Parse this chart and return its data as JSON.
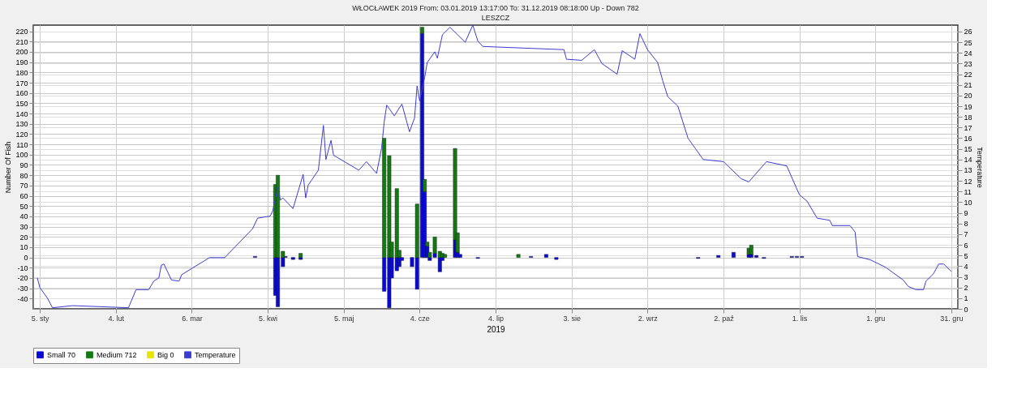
{
  "chart_data": {
    "type": "bar",
    "title": "WŁOCŁAWEK 2019    From: 03.01.2019 13:17:00    To: 31.12.2019 08:18:00    Up - Down   782",
    "subtitle": "LESZCZ",
    "xlabel": "2019",
    "ylabel": "Number Of Fish",
    "y2label": "Temperature",
    "stacked": true,
    "legend": "bottom",
    "grid": true,
    "x": [
      "2019-03-31",
      "2019-04-08",
      "2019-04-09",
      "2019-04-11",
      "2019-04-12",
      "2019-04-15",
      "2019-04-18",
      "2019-05-21",
      "2019-05-23",
      "2019-05-24",
      "2019-05-26",
      "2019-05-27",
      "2019-05-28",
      "2019-06-01",
      "2019-06-03",
      "2019-06-05",
      "2019-06-06",
      "2019-06-07",
      "2019-06-08",
      "2019-06-10",
      "2019-06-12",
      "2019-06-13",
      "2019-06-14",
      "2019-06-18",
      "2019-06-19",
      "2019-06-20",
      "2019-06-27",
      "2019-07-13",
      "2019-07-18",
      "2019-07-24",
      "2019-07-28",
      "2019-09-22",
      "2019-09-30",
      "2019-10-06",
      "2019-10-12",
      "2019-10-13",
      "2019-10-15",
      "2019-10-18",
      "2019-10-29",
      "2019-10-31",
      "2019-11-02"
    ],
    "series": [
      {
        "name": "Small 70",
        "color": "#0a0ad8",
        "values": [
          1,
          -37,
          -48,
          -9,
          1,
          -2,
          -2,
          -33,
          -49,
          -20,
          -13,
          -9,
          -3,
          -9,
          -31,
          218,
          64,
          11,
          -3,
          4,
          -14,
          -3,
          null,
          17,
          5,
          3,
          -1,
          null,
          1,
          3,
          -2,
          -1,
          2,
          5,
          3,
          3,
          2,
          -1,
          1,
          1,
          1
        ]
      },
      {
        "name": "Medium 712",
        "color": "#137a13",
        "values": [
          null,
          71,
          80,
          6,
          null,
          null,
          4,
          116,
          99,
          15,
          67,
          7,
          null,
          null,
          52,
          6,
          12,
          4,
          5,
          16,
          6,
          4,
          3,
          89,
          19,
          null,
          null,
          3,
          null,
          null,
          null,
          null,
          null,
          null,
          6,
          9,
          null,
          null,
          null,
          null,
          null
        ]
      },
      {
        "name": "Big 0",
        "color": "#e6e600",
        "values": [
          null,
          null,
          null,
          null,
          null,
          null,
          null,
          null,
          null,
          null,
          null,
          null,
          null,
          null,
          null,
          null,
          null,
          null,
          null,
          null,
          null,
          null,
          null,
          null,
          null,
          null,
          null,
          null,
          null,
          null,
          null,
          null,
          null,
          null,
          null,
          null,
          null,
          null,
          null,
          null,
          null
        ]
      },
      {
        "name": "Temperature",
        "type": "line",
        "axis": "y2",
        "color": "#3c3cd2",
        "x": [
          "2019-01-04",
          "2019-01-05",
          "2019-01-08",
          "2019-01-10",
          "2019-01-18",
          "2019-02-09",
          "2019-02-12",
          "2019-02-17",
          "2019-02-19",
          "2019-02-21",
          "2019-02-22",
          "2019-02-23",
          "2019-02-26",
          "2019-03-01",
          "2019-03-02",
          "2019-03-13",
          "2019-03-19",
          "2019-03-30",
          "2019-04-01",
          "2019-04-06",
          "2019-04-07",
          "2019-04-09",
          "2019-04-10",
          "2019-04-11",
          "2019-04-15",
          "2019-04-19",
          "2019-04-20",
          "2019-04-21",
          "2019-04-25",
          "2019-04-27",
          "2019-04-28",
          "2019-04-30",
          "2019-05-01",
          "2019-05-06",
          "2019-05-11",
          "2019-05-14",
          "2019-05-18",
          "2019-05-20",
          "2019-05-21",
          "2019-05-22",
          "2019-05-25",
          "2019-05-28",
          "2019-05-31",
          "2019-06-02",
          "2019-06-03",
          "2019-06-04",
          "2019-06-06",
          "2019-06-07",
          "2019-06-10",
          "2019-06-11",
          "2019-06-13",
          "2019-06-16",
          "2019-06-19",
          "2019-06-22",
          "2019-06-25",
          "2019-06-27",
          "2019-06-29",
          "2019-07-31",
          "2019-08-01",
          "2019-08-07",
          "2019-08-12",
          "2019-08-15",
          "2019-08-21",
          "2019-08-23",
          "2019-08-28",
          "2019-08-30",
          "2019-09-02",
          "2019-09-06",
          "2019-09-08",
          "2019-09-10",
          "2019-09-14",
          "2019-09-18",
          "2019-09-21",
          "2019-09-24",
          "2019-10-02",
          "2019-10-09",
          "2019-10-12",
          "2019-10-19",
          "2019-10-27",
          "2019-11-01",
          "2019-11-04",
          "2019-11-08",
          "2019-11-13",
          "2019-11-14",
          "2019-11-21",
          "2019-11-23",
          "2019-11-24",
          "2019-11-29",
          "2019-12-05",
          "2019-12-12",
          "2019-12-14",
          "2019-12-17",
          "2019-12-20",
          "2019-12-21",
          "2019-12-24",
          "2019-12-26",
          "2019-12-28",
          "2019-12-31"
        ],
        "values": [
          2.9,
          2.0,
          1.0,
          0.1,
          0.3,
          0.1,
          1.8,
          1.8,
          2.6,
          2.9,
          4.1,
          4.2,
          2.7,
          2.6,
          3.2,
          4.8,
          4.8,
          7.5,
          8.5,
          8.7,
          9.2,
          11.4,
          10.2,
          10.4,
          9.4,
          12.6,
          10.4,
          11.6,
          13.0,
          17.2,
          14.0,
          15.8,
          14.4,
          13.7,
          13.0,
          13.8,
          12.7,
          15.1,
          17.5,
          19.1,
          18.1,
          19.2,
          16.6,
          17.9,
          20.9,
          19.5,
          21.7,
          23.1,
          24.1,
          23.5,
          25.7,
          26.4,
          25.7,
          25.0,
          26.6,
          25.1,
          24.6,
          24.3,
          23.4,
          23.3,
          24.3,
          23.0,
          22.0,
          24.2,
          23.4,
          25.8,
          24.3,
          23.1,
          21.4,
          19.9,
          19.0,
          16.0,
          15.0,
          14.0,
          13.8,
          12.2,
          11.9,
          13.8,
          13.4,
          10.7,
          10.1,
          8.5,
          8.3,
          7.8,
          7.8,
          7.2,
          4.9,
          4.6,
          3.9,
          2.7,
          2.1,
          1.8,
          1.8,
          2.6,
          3.3,
          4.2,
          4.2,
          3.5
        ]
      }
    ],
    "xlim": [
      "2019-01-04",
      "2020-01-01"
    ],
    "xticks": [
      {
        "value": "2019-01-05",
        "label": "5. sty"
      },
      {
        "value": "2019-02-04",
        "label": "4. lut"
      },
      {
        "value": "2019-03-06",
        "label": "6. mar"
      },
      {
        "value": "2019-04-05",
        "label": "5. kwi"
      },
      {
        "value": "2019-05-05",
        "label": "5. maj"
      },
      {
        "value": "2019-06-04",
        "label": "4. cze"
      },
      {
        "value": "2019-07-04",
        "label": "4. lip"
      },
      {
        "value": "2019-08-03",
        "label": "3. sie"
      },
      {
        "value": "2019-09-02",
        "label": "2. wrz"
      },
      {
        "value": "2019-10-02",
        "label": "2. paź"
      },
      {
        "value": "2019-11-01",
        "label": "1. lis"
      },
      {
        "value": "2019-12-01",
        "label": "1. gru"
      },
      {
        "value": "2019-12-31",
        "label": "31. gru"
      }
    ],
    "ylim": [
      -50,
      226
    ],
    "yticks": [
      -40,
      -30,
      -20,
      -10,
      0,
      10,
      20,
      30,
      40,
      50,
      60,
      70,
      80,
      90,
      100,
      110,
      120,
      130,
      140,
      150,
      160,
      170,
      180,
      190,
      200,
      210,
      220
    ],
    "y2lim": [
      0,
      26.6
    ],
    "y2ticks": [
      0,
      1,
      2,
      3,
      4,
      5,
      6,
      7,
      8,
      9,
      10,
      11,
      12,
      13,
      14,
      15,
      16,
      17,
      18,
      19,
      20,
      21,
      22,
      23,
      24,
      25,
      26
    ]
  }
}
